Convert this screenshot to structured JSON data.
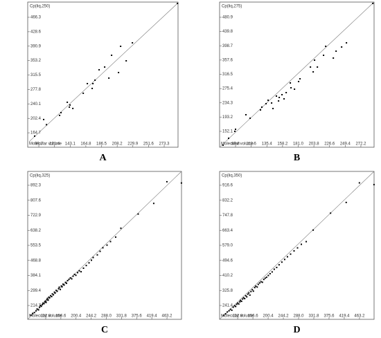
{
  "chart_data": [
    {
      "type": "scatter",
      "ylabel": "Cp(liq,250)",
      "xlabel": "Molecular volume",
      "panel_label": "A",
      "color": "#000000",
      "xlim": [
        84.3,
        292.5
      ],
      "ylim": [
        127,
        506
      ],
      "xticks": [
        99.7,
        121.4,
        143.1,
        164.8,
        186.5,
        208.2,
        229.9,
        251.6,
        273.3
      ],
      "yticks": [
        164.7,
        202.4,
        240.1,
        277.8,
        315.5,
        353.2,
        390.9,
        428.6,
        466.3
      ],
      "x": [
        93.9,
        106.4,
        110.3,
        128.5,
        130.4,
        139.1,
        142.9,
        142.0,
        146.8,
        161.2,
        166.9,
        173.6,
        174.6,
        177.5,
        183.2,
        190.9,
        196.7,
        200.5,
        210.1,
        213.0,
        220.7,
        229.3,
        291.7
      ],
      "values": [
        156.0,
        199.3,
        185.9,
        210.1,
        217.3,
        244.4,
        237.2,
        231.8,
        228.2,
        267.9,
        293.1,
        280.5,
        293.1,
        302.1,
        329.2,
        336.4,
        307.5,
        367.1,
        322.0,
        390.5,
        352.6,
        399.6,
        502.4
      ],
      "fit": {
        "x": [
          86.3,
          291.7
        ],
        "y": [
          141.6,
          502.4
        ]
      }
    },
    {
      "type": "scatter",
      "ylabel": "Cp(liq,275)",
      "xlabel": "Molecular volume",
      "panel_label": "B",
      "color": "#000000",
      "xlim": [
        66.6,
        291.4
      ],
      "ylim": [
        106.3,
        524.7
      ],
      "xticks": [
        89.8,
        112.6,
        135.4,
        158.2,
        {
          "value": 181.0,
          "label": "181.0"
        },
        203.8,
        226.6,
        249.4,
        272.2
      ],
      "yticks": [
        152.1,
        193.2,
        234.3,
        275.4,
        316.5,
        357.6,
        398.7,
        439.8,
        480.9
      ],
      "x": [
        71.6,
        79.7,
        88.8,
        89.8,
        104.9,
        111.0,
        126.1,
        128.1,
        134.2,
        137.2,
        142.3,
        144.3,
        149.3,
        152.4,
        153.4,
        157.4,
        160.4,
        163.5,
        169.5,
        170.5,
        175.6,
        181.6,
        183.6,
        198.8,
        202.8,
        204.8,
        208.9,
        217.9,
        221.0,
        232.1,
        236.1,
        244.2,
        251.2,
        289.6
      ],
      "values": [
        112.2,
        132.1,
        152.1,
        158.0,
        199.9,
        189.9,
        213.8,
        221.8,
        231.8,
        241.7,
        233.8,
        217.8,
        253.7,
        239.7,
        249.7,
        257.7,
        245.7,
        263.7,
        291.6,
        277.6,
        273.6,
        295.6,
        303.5,
        337.4,
        323.5,
        357.3,
        337.4,
        371.3,
        397.2,
        363.3,
        383.2,
        395.2,
        407.2,
        520.8
      ],
      "fit": {
        "x": [
          67.6,
          291.4
        ],
        "y": [
          108.2,
          524.7
        ]
      }
    },
    {
      "type": "scatter",
      "ylabel": "Cp(liq,325)",
      "xlabel": "Molecular volume",
      "panel_label": "C",
      "color": "#000000",
      "xlim": [
        60.8,
        505.2
      ],
      "ylim": [
        136.8,
        970.2
      ],
      "xticks": [
        112.8,
        156.6,
        200.4,
        244.2,
        {
          "value": 288.0,
          "label": "288.0"
        },
        331.8,
        375.6,
        419.4,
        463.2
      ],
      "yticks": [
        214.7,
        299.4,
        384.1,
        468.8,
        553.5,
        638.2,
        722.9,
        807.6,
        892.3
      ],
      "x": [
        70,
        75,
        80,
        85,
        88,
        92,
        95,
        98,
        100,
        103,
        105,
        108,
        110,
        112,
        114,
        116,
        118,
        120,
        122,
        124,
        127,
        130,
        132,
        135,
        138,
        140,
        143,
        146,
        150,
        152,
        155,
        158,
        160,
        163,
        166,
        170,
        173,
        176,
        180,
        184,
        188,
        192,
        196,
        200,
        205,
        210,
        215,
        222,
        230,
        238,
        245,
        250,
        262,
        270,
        278,
        290,
        300,
        315,
        330,
        380,
        425,
        463,
        505
      ],
      "values": [
        160,
        170,
        175,
        185,
        195,
        190,
        205,
        215,
        210,
        220,
        228,
        225,
        235,
        240,
        232,
        248,
        255,
        245,
        262,
        258,
        270,
        265,
        280,
        275,
        290,
        285,
        300,
        295,
        310,
        318,
        305,
        325,
        320,
        335,
        330,
        345,
        340,
        355,
        362,
        370,
        365,
        380,
        390,
        385,
        400,
        410,
        405,
        425,
        440,
        455,
        470,
        485,
        500,
        520,
        540,
        555,
        575,
        600,
        650,
        730,
        790,
        912,
        905
      ],
      "fit": {
        "x": [
          60.8,
          505.2
        ],
        "y": [
          137,
          970.2
        ]
      }
    },
    {
      "type": "scatter",
      "ylabel": "Cp(liq,350)",
      "xlabel": "Molecular volume",
      "panel_label": "D",
      "color": "#000000",
      "xlim": [
        60.8,
        505.2
      ],
      "ylim": [
        163.8,
        994.2
      ],
      "xticks": [
        112.8,
        156.6,
        200.4,
        244.2,
        {
          "value": 288.0,
          "label": "288.0"
        },
        331.8,
        375.6,
        419.4,
        463.2
      ],
      "yticks": [
        241.4,
        325.8,
        410.2,
        494.6,
        {
          "value": 579.0,
          "label": "579.0"
        },
        663.4,
        747.8,
        832.2,
        916.6
      ],
      "x": [
        72,
        78,
        83,
        88,
        92,
        96,
        100,
        104,
        107,
        110,
        113,
        116,
        119,
        121,
        124,
        127,
        130,
        133,
        136,
        139,
        142,
        145,
        148,
        151,
        155,
        158,
        162,
        165,
        169,
        172,
        176,
        180,
        184,
        188,
        192,
        196,
        201,
        206,
        212,
        218,
        225,
        232,
        240,
        248,
        256,
        265,
        275,
        285,
        296,
        310,
        330,
        380,
        425,
        463,
        505
      ],
      "values": [
        185,
        195,
        205,
        212,
        220,
        215,
        232,
        240,
        236,
        248,
        255,
        250,
        262,
        270,
        265,
        278,
        285,
        280,
        296,
        290,
        305,
        312,
        300,
        320,
        330,
        322,
        342,
        350,
        345,
        360,
        368,
        375,
        372,
        388,
        395,
        400,
        410,
        420,
        430,
        445,
        455,
        470,
        485,
        500,
        515,
        530,
        548,
        565,
        585,
        600,
        665,
        760,
        820,
        930,
        920
      ],
      "fit": {
        "x": [
          60.8,
          505.2
        ],
        "y": [
          164,
          994.2
        ]
      }
    }
  ]
}
